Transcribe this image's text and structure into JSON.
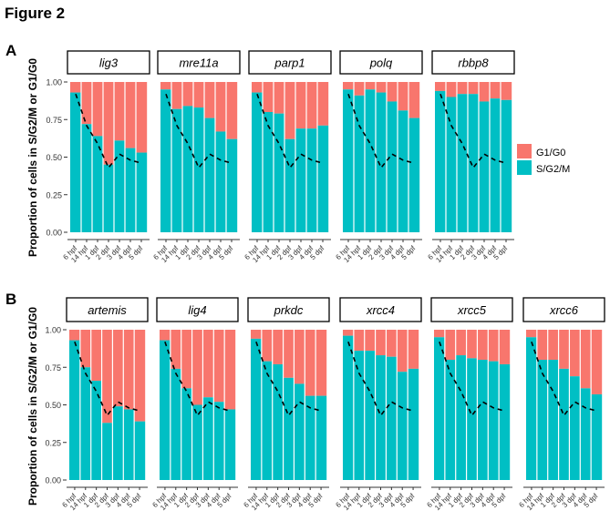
{
  "figure_title": "Figure 2",
  "colors": {
    "g1g0": "#F8766D",
    "sg2m": "#00BFC4",
    "dashed": "#000000",
    "axis": "#333333",
    "strip_border": "#000000"
  },
  "legend": [
    {
      "label": "G1/G0",
      "color": "#F8766D"
    },
    {
      "label": "S/G2/M",
      "color": "#00BFC4"
    }
  ],
  "chart_data": [
    {
      "panel_label": "A",
      "type": "bar",
      "stacked": true,
      "ylabel": "Proportion of cells in S/G2/M or G1/G0",
      "ylim": [
        0,
        1
      ],
      "yticks": [
        "0.00",
        "0.25",
        "0.50",
        "0.75",
        "1.00"
      ],
      "categories": [
        "6 hpf",
        "14 hpf",
        "1 dpf",
        "2 dpf",
        "3 dpf",
        "4 dpf",
        "5 dpf"
      ],
      "reference_line": [
        0.92,
        0.71,
        0.59,
        0.43,
        0.52,
        0.48,
        0.46
      ],
      "facets": [
        {
          "name": "lig3",
          "sg2m": [
            0.93,
            0.72,
            0.64,
            0.45,
            0.61,
            0.56,
            0.53
          ]
        },
        {
          "name": "mre11a",
          "sg2m": [
            0.95,
            0.82,
            0.84,
            0.83,
            0.76,
            0.67,
            0.62
          ]
        },
        {
          "name": "parp1",
          "sg2m": [
            0.93,
            0.8,
            0.79,
            0.62,
            0.69,
            0.69,
            0.71
          ]
        },
        {
          "name": "polq",
          "sg2m": [
            0.95,
            0.91,
            0.95,
            0.93,
            0.87,
            0.81,
            0.76
          ]
        },
        {
          "name": "rbbp8",
          "sg2m": [
            0.94,
            0.9,
            0.92,
            0.92,
            0.87,
            0.89,
            0.88
          ]
        }
      ]
    },
    {
      "panel_label": "B",
      "type": "bar",
      "stacked": true,
      "ylabel": "Proportion of cells in S/G2/M or G1/G0",
      "ylim": [
        0,
        1
      ],
      "yticks": [
        "0.00",
        "0.25",
        "0.50",
        "0.75",
        "1.00"
      ],
      "categories": [
        "6 hpf",
        "14 hpf",
        "1 dpf",
        "2 dpf",
        "3 dpf",
        "4 dpf",
        "5 dpf"
      ],
      "reference_line": [
        0.92,
        0.71,
        0.59,
        0.43,
        0.52,
        0.48,
        0.46
      ],
      "facets": [
        {
          "name": "artemis",
          "sg2m": [
            0.93,
            0.75,
            0.66,
            0.38,
            0.49,
            0.47,
            0.39
          ]
        },
        {
          "name": "lig4",
          "sg2m": [
            0.93,
            0.74,
            0.61,
            0.5,
            0.55,
            0.52,
            0.47
          ]
        },
        {
          "name": "prkdc",
          "sg2m": [
            0.94,
            0.79,
            0.77,
            0.68,
            0.64,
            0.56,
            0.56
          ]
        },
        {
          "name": "xrcc4",
          "sg2m": [
            0.96,
            0.86,
            0.86,
            0.83,
            0.82,
            0.72,
            0.74
          ]
        },
        {
          "name": "xrcc5",
          "sg2m": [
            0.95,
            0.8,
            0.83,
            0.81,
            0.8,
            0.79,
            0.77
          ]
        },
        {
          "name": "xrcc6",
          "sg2m": [
            0.95,
            0.8,
            0.8,
            0.74,
            0.69,
            0.61,
            0.57
          ]
        }
      ]
    }
  ]
}
